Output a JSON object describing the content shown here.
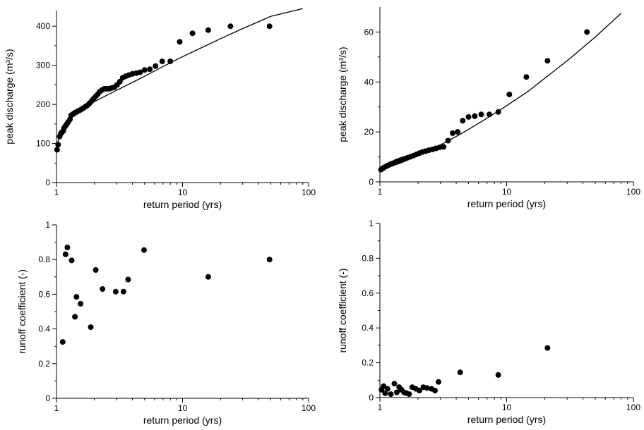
{
  "chart_data": [
    {
      "type": "scatter",
      "panel": "top-left",
      "xlabel": "return period (yrs)",
      "ylabel": "peak discharge (m³/s)",
      "xscale": "log",
      "xlim": [
        1,
        100
      ],
      "ylim": [
        0,
        440
      ],
      "xticks": [
        1,
        10,
        100
      ],
      "xtick_labels": [
        "1",
        "10",
        "100"
      ],
      "yticks": [
        0,
        100,
        200,
        300,
        400
      ],
      "ytick_labels": [
        "0",
        "100",
        "200",
        "300",
        "400"
      ],
      "grid": false,
      "series": [
        {
          "kind": "points",
          "color": "#000000",
          "x": [
            1.01,
            1.03,
            1.06,
            1.08,
            1.1,
            1.13,
            1.15,
            1.18,
            1.21,
            1.24,
            1.28,
            1.31,
            1.35,
            1.39,
            1.43,
            1.48,
            1.53,
            1.58,
            1.63,
            1.69,
            1.75,
            1.82,
            1.89,
            1.96,
            2.04,
            2.12,
            2.2,
            2.3,
            2.4,
            2.5,
            2.62,
            2.74,
            2.88,
            3.02,
            3.18,
            3.35,
            3.54,
            3.75,
            4.0,
            4.3,
            4.6,
            5.0,
            5.5,
            6.1,
            6.9,
            8.0,
            9.5,
            12.0,
            16.0,
            24.0,
            49.0
          ],
          "y": [
            84,
            97,
            118,
            125,
            128,
            132,
            140,
            145,
            150,
            155,
            162,
            172,
            175,
            178,
            180,
            183,
            185,
            188,
            190,
            194,
            197,
            202,
            208,
            214,
            220,
            226,
            232,
            237,
            240,
            240,
            240,
            242,
            244,
            250,
            258,
            268,
            272,
            275,
            278,
            280,
            282,
            288,
            290,
            298,
            310,
            310,
            360,
            382,
            390,
            400,
            400
          ]
        },
        {
          "kind": "fit-curve",
          "color": "#000000",
          "x": [
            1.0,
            1.02,
            1.05,
            1.1,
            1.2,
            1.3,
            1.5,
            1.7,
            2.0,
            2.5,
            3.0,
            4.0,
            5.0,
            7.0,
            10.0,
            15.0,
            20.0,
            30.0,
            50.0,
            90.0
          ],
          "y": [
            85,
            100,
            118,
            135,
            158,
            170,
            184,
            194,
            207,
            223,
            236,
            256,
            272,
            297,
            322,
            349,
            368,
            394,
            425,
            445
          ]
        }
      ]
    },
    {
      "type": "scatter",
      "panel": "top-right",
      "xlabel": "return period (yrs)",
      "ylabel": "peak discharge (m³/s)",
      "xscale": "log",
      "xlim": [
        1,
        100
      ],
      "ylim": [
        0,
        70
      ],
      "xticks": [
        1,
        10,
        100
      ],
      "xtick_labels": [
        "1",
        "10",
        "100"
      ],
      "yticks": [
        0,
        20,
        40,
        60
      ],
      "ytick_labels": [
        "0",
        "20",
        "40",
        "60"
      ],
      "grid": false,
      "series": [
        {
          "kind": "points",
          "color": "#000000",
          "x": [
            1.02,
            1.06,
            1.1,
            1.15,
            1.2,
            1.25,
            1.31,
            1.37,
            1.44,
            1.51,
            1.58,
            1.66,
            1.75,
            1.84,
            1.94,
            2.05,
            2.17,
            2.3,
            2.44,
            2.6,
            2.77,
            2.96,
            3.18,
            3.45,
            3.75,
            4.1,
            4.5,
            5.0,
            5.6,
            6.3,
            7.3,
            8.6,
            10.5,
            14.3,
            21.0,
            43.0
          ],
          "y": [
            4.9,
            5.5,
            6.0,
            6.5,
            7.0,
            7.3,
            7.8,
            8.2,
            8.6,
            9.0,
            9.3,
            9.7,
            10.1,
            10.5,
            11.0,
            11.5,
            12.0,
            12.3,
            12.7,
            13.0,
            13.4,
            13.8,
            14.0,
            16.5,
            19.5,
            20.0,
            24.5,
            26.0,
            26.3,
            27.0,
            27.0,
            28.0,
            35.0,
            42.0,
            48.5,
            60.0
          ]
        },
        {
          "kind": "fit-curve",
          "color": "#000000",
          "x": [
            1.0,
            1.2,
            1.5,
            2.0,
            2.5,
            3.0,
            4.0,
            5.0,
            7.0,
            10.0,
            15.0,
            20.0,
            30.0,
            50.0,
            80.0
          ],
          "y": [
            4.5,
            6.0,
            7.8,
            10.5,
            12.8,
            14.8,
            18.2,
            21.0,
            25.5,
            30.5,
            36.5,
            41.5,
            48.5,
            58.0,
            67.5
          ]
        }
      ]
    },
    {
      "type": "scatter",
      "panel": "bottom-left",
      "xlabel": "return period (yrs)",
      "ylabel": "runoff coefficient (-)",
      "xscale": "log",
      "xlim": [
        1,
        100
      ],
      "ylim": [
        0,
        1
      ],
      "xticks": [
        1,
        10,
        100
      ],
      "xtick_labels": [
        "1",
        "10",
        "100"
      ],
      "yticks": [
        0,
        0.2,
        0.4,
        0.6,
        0.8,
        1
      ],
      "ytick_labels": [
        "0",
        "0.2",
        "0.4",
        "0.6",
        "0.8",
        "1"
      ],
      "grid": false,
      "series": [
        {
          "kind": "points",
          "color": "#000000",
          "x": [
            1.12,
            1.18,
            1.22,
            1.32,
            1.4,
            1.44,
            1.55,
            1.87,
            2.05,
            2.32,
            2.95,
            3.4,
            3.7,
            4.95,
            16.0,
            49.0
          ],
          "y": [
            0.325,
            0.83,
            0.87,
            0.795,
            0.47,
            0.585,
            0.545,
            0.41,
            0.74,
            0.63,
            0.615,
            0.615,
            0.685,
            0.855,
            0.7,
            0.8
          ]
        }
      ]
    },
    {
      "type": "scatter",
      "panel": "bottom-right",
      "xlabel": "return period (yrs)",
      "ylabel": "runoff coefficient (-)",
      "xscale": "log",
      "xlim": [
        1,
        100
      ],
      "ylim": [
        0,
        1
      ],
      "xticks": [
        1,
        10,
        100
      ],
      "xtick_labels": [
        "1",
        "10",
        "100"
      ],
      "yticks": [
        0,
        0.2,
        0.4,
        0.6,
        0.8,
        1
      ],
      "ytick_labels": [
        "0",
        "0.2",
        "0.4",
        "0.6",
        "0.8",
        "1"
      ],
      "grid": false,
      "series": [
        {
          "kind": "points",
          "color": "#000000",
          "x": [
            1.03,
            1.07,
            1.1,
            1.15,
            1.22,
            1.3,
            1.36,
            1.42,
            1.48,
            1.55,
            1.62,
            1.7,
            1.8,
            1.92,
            2.05,
            2.2,
            2.35,
            2.55,
            2.72,
            2.9,
            4.3,
            8.6,
            21.0
          ],
          "y": [
            0.045,
            0.065,
            0.025,
            0.05,
            0.02,
            0.08,
            0.03,
            0.06,
            0.045,
            0.03,
            0.025,
            0.02,
            0.06,
            0.05,
            0.04,
            0.06,
            0.055,
            0.05,
            0.04,
            0.09,
            0.145,
            0.13,
            0.285
          ]
        }
      ]
    }
  ]
}
